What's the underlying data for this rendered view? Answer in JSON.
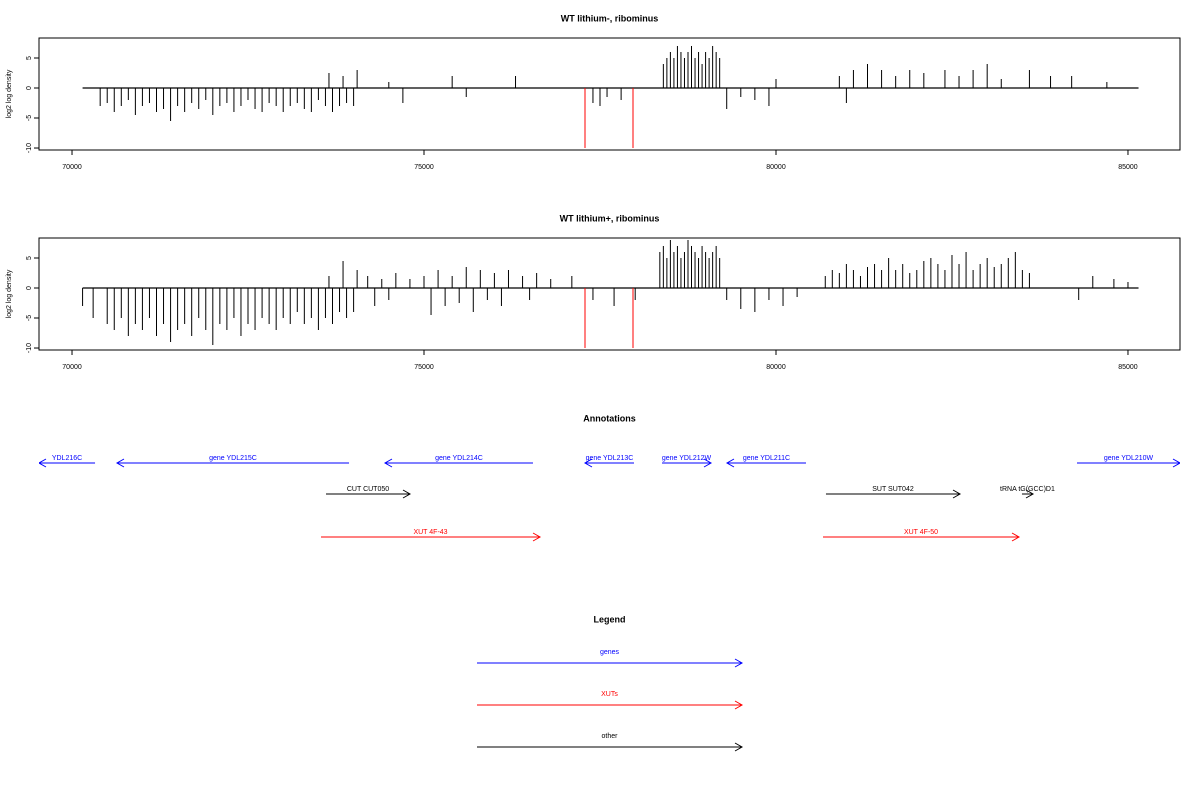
{
  "chart_data": [
    {
      "type": "bar",
      "title": "WT lithium-, ribominus",
      "y_label": "log2 log density",
      "xlim": [
        69531,
        85739
      ],
      "ylim": [
        -10.33,
        8.33
      ],
      "xticks": [
        70000,
        75000,
        80000,
        85000
      ],
      "yticks": [
        -10,
        -5,
        0,
        5
      ],
      "baseline": [
        70150,
        85150
      ],
      "color": "#000000",
      "x": [
        70400,
        70500,
        70600,
        70700,
        70800,
        70900,
        71000,
        71100,
        71200,
        71300,
        71400,
        71500,
        71600,
        71700,
        71800,
        71900,
        72000,
        72100,
        72200,
        72300,
        72400,
        72500,
        72600,
        72700,
        72800,
        72900,
        73000,
        73100,
        73200,
        73300,
        73400,
        73500,
        73600,
        73700,
        73800,
        73900,
        74000,
        73650,
        73850,
        74050,
        74500,
        74700,
        75400,
        75600,
        76300,
        77400,
        77500,
        77600,
        77800,
        78400,
        78450,
        78500,
        78550,
        78600,
        78650,
        78700,
        78750,
        78800,
        78850,
        78900,
        78950,
        79000,
        79050,
        79100,
        79150,
        79200,
        79300,
        79500,
        79700,
        79900,
        80000,
        80900,
        81000,
        81100,
        81300,
        81500,
        81700,
        81900,
        82100,
        82400,
        82600,
        82800,
        83000,
        83200,
        83600,
        83900,
        84200,
        84700
      ],
      "values": [
        -3,
        -2.5,
        -4,
        -3,
        -2,
        -4.5,
        -3,
        -2.5,
        -4,
        -3.5,
        -5.5,
        -3,
        -4,
        -2.5,
        -3.5,
        -2,
        -4.5,
        -3,
        -2.5,
        -4,
        -3,
        -2,
        -3.5,
        -4,
        -2.5,
        -3,
        -4,
        -3,
        -2.5,
        -3.5,
        -4,
        -2,
        -3,
        -4,
        -3,
        -2.5,
        -3,
        2.5,
        2,
        3,
        1,
        -2.5,
        2,
        -1.5,
        2,
        -2.5,
        -3,
        -1.5,
        -2,
        4,
        5,
        6,
        5,
        7,
        6,
        5,
        6,
        7,
        5,
        6,
        4,
        6,
        5,
        7,
        6,
        5,
        -3.5,
        -1.5,
        -2,
        -3,
        1.5,
        2,
        -2.5,
        3,
        4,
        3,
        2,
        3,
        2.5,
        3,
        2,
        3,
        4,
        1.5,
        3,
        2,
        2,
        1
      ],
      "highlights": {
        "color": "#ff0000",
        "x": [
          77287,
          77969
        ],
        "values": [
          -10,
          -10
        ]
      }
    },
    {
      "type": "bar",
      "title": "WT lithium+, ribominus",
      "y_label": "log2 log density",
      "xlim": [
        69531,
        85739
      ],
      "ylim": [
        -10.33,
        8.33
      ],
      "xticks": [
        70000,
        75000,
        80000,
        85000
      ],
      "yticks": [
        -10,
        -5,
        0,
        5
      ],
      "baseline": [
        70150,
        85150
      ],
      "color": "#000000",
      "x": [
        70150,
        70300,
        70500,
        70600,
        70700,
        70800,
        70900,
        71000,
        71100,
        71200,
        71300,
        71400,
        71500,
        71600,
        71700,
        71800,
        71900,
        72000,
        72100,
        72200,
        72300,
        72400,
        72500,
        72600,
        72700,
        72800,
        72900,
        73000,
        73100,
        73200,
        73300,
        73400,
        73500,
        73600,
        73700,
        73800,
        73900,
        74000,
        73650,
        73850,
        74050,
        74200,
        74400,
        74600,
        74800,
        75000,
        75200,
        75400,
        75600,
        75800,
        76000,
        76200,
        76400,
        76600,
        76800,
        77100,
        74300,
        74500,
        75100,
        75300,
        75500,
        75700,
        75900,
        76100,
        76500,
        77400,
        77700,
        78000,
        78350,
        78400,
        78450,
        78500,
        78550,
        78600,
        78650,
        78700,
        78750,
        78800,
        78850,
        78900,
        78950,
        79000,
        79050,
        79100,
        79150,
        79200,
        79300,
        79500,
        79700,
        79900,
        80100,
        80300,
        80700,
        80800,
        80900,
        81000,
        81100,
        81200,
        81300,
        81400,
        81500,
        81600,
        81700,
        81800,
        81900,
        82000,
        82100,
        82200,
        82300,
        82400,
        82500,
        82600,
        82700,
        82800,
        82900,
        83000,
        83100,
        83200,
        83300,
        83400,
        83500,
        83600,
        84300,
        84500,
        84800,
        85000
      ],
      "values": [
        -3,
        -5,
        -6,
        -7,
        -5,
        -8,
        -6,
        -7,
        -5,
        -8,
        -6,
        -9,
        -7,
        -6,
        -8,
        -5,
        -7,
        -9.5,
        -6,
        -7,
        -5,
        -8,
        -6,
        -7,
        -5,
        -6,
        -7,
        -5,
        -6,
        -4,
        -6,
        -5,
        -7,
        -5,
        -6,
        -4,
        -5,
        -4,
        2,
        4.5,
        3,
        2,
        1.5,
        2.5,
        1.5,
        2,
        3,
        2,
        3.5,
        3,
        2.5,
        3,
        2,
        2.5,
        1.5,
        2,
        -3,
        -2,
        -4.5,
        -3,
        -2.5,
        -4,
        -2,
        -3,
        -2,
        -2,
        -3,
        -2,
        6,
        7,
        5,
        8,
        6,
        7,
        5,
        6,
        8,
        7,
        6,
        5,
        7,
        6,
        5,
        6,
        7,
        5,
        -2,
        -3.5,
        -4,
        -2,
        -3,
        -1.5,
        2,
        3,
        2.5,
        4,
        3,
        2,
        3.5,
        4,
        3,
        5,
        3,
        4,
        2.5,
        3,
        4.5,
        5,
        4,
        3,
        5.5,
        4,
        6,
        3,
        4,
        5,
        3.5,
        4,
        5,
        6,
        3,
        2.5,
        -2,
        2,
        1.5,
        1
      ],
      "highlights": {
        "color": "#ff0000",
        "x": [
          77287,
          77969
        ],
        "values": [
          -10,
          -10
        ]
      }
    },
    {
      "type": "annotation",
      "title": "Annotations",
      "xlim": [
        69531,
        85739
      ],
      "features": [
        {
          "label": "YDL216C",
          "start": 70327,
          "end": 69531,
          "color": "#0000ff"
        },
        {
          "label": "gene YDL215C",
          "start": 73935,
          "end": 70639,
          "color": "#0000ff"
        },
        {
          "label": "gene YDL214C",
          "start": 76548,
          "end": 74446,
          "color": "#0000ff"
        },
        {
          "label": "gene YDL213C",
          "start": 77983,
          "end": 77287,
          "color": "#0000ff"
        },
        {
          "label": "gene YDL212W",
          "start": 78381,
          "end": 79077,
          "color": "#0000ff"
        },
        {
          "label": "gene YDL211C",
          "start": 80426,
          "end": 79304,
          "color": "#0000ff"
        },
        {
          "label": "gene YDL210W",
          "start": 84276,
          "end": 85739,
          "color": "#0000ff"
        },
        {
          "label": "tRNA tG(GCC)D1",
          "start": 83494,
          "end": 83651,
          "color": "#000000"
        },
        {
          "label": "SUT SUT042",
          "start": 80710,
          "end": 82614,
          "color": "#000000"
        },
        {
          "label": "CUT CUT050",
          "start": 73608,
          "end": 74801,
          "color": "#000000"
        },
        {
          "label": "XUT 4F-43",
          "start": 73537,
          "end": 76648,
          "color": "#ff0000"
        },
        {
          "label": "XUT 4F-50",
          "start": 80668,
          "end": 83452,
          "color": "#ff0000"
        }
      ]
    },
    {
      "type": "legend",
      "title": "Legend",
      "items": [
        {
          "label": "genes",
          "color": "#0000ff"
        },
        {
          "label": "XUTs",
          "color": "#ff0000"
        },
        {
          "label": "other",
          "color": "#000000"
        }
      ]
    }
  ]
}
